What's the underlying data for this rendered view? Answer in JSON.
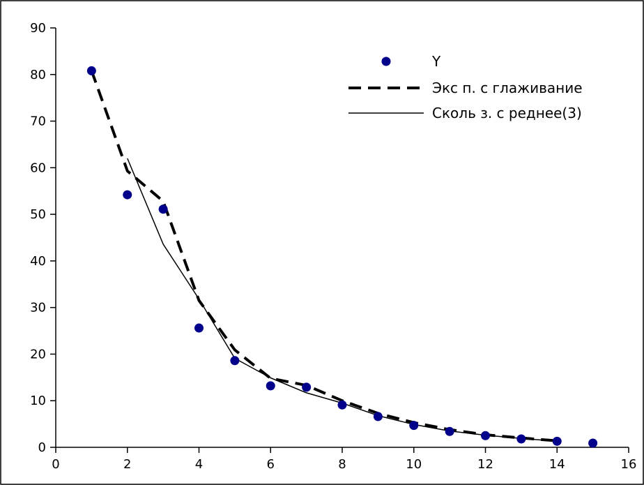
{
  "chart_data": {
    "type": "scatter",
    "title": "",
    "xlabel": "",
    "ylabel": "",
    "xlim": [
      0,
      16
    ],
    "ylim": [
      0,
      90
    ],
    "xticks": [
      0,
      2,
      4,
      6,
      8,
      10,
      12,
      14,
      16
    ],
    "yticks": [
      0,
      10,
      20,
      30,
      40,
      50,
      60,
      70,
      80,
      90
    ],
    "grid": false,
    "legend_position": "top-right",
    "series": [
      {
        "name": "Y",
        "kind": "scatter",
        "color": "#00008b",
        "x": [
          1,
          2,
          3,
          4,
          5,
          6,
          7,
          8,
          9,
          10,
          11,
          12,
          13,
          14,
          15
        ],
        "y": [
          80.8,
          54.2,
          51.1,
          25.6,
          18.6,
          13.2,
          12.9,
          9.1,
          6.6,
          4.7,
          3.4,
          2.5,
          1.8,
          1.3,
          0.9
        ]
      },
      {
        "name": "Экс п.  с глаживание",
        "kind": "line",
        "style": "dashed",
        "color": "#000000",
        "x": [
          1,
          2,
          3,
          4,
          5,
          6,
          7,
          8,
          9,
          10,
          11,
          12,
          13,
          14
        ],
        "y": [
          80.8,
          59.3,
          52.8,
          31.5,
          20.9,
          14.8,
          13.3,
          10.0,
          7.3,
          5.3,
          3.8,
          2.7,
          2.0,
          1.4
        ]
      },
      {
        "name": "Сколь з.  с реднее(3)",
        "kind": "line",
        "style": "solid",
        "color": "#000000",
        "x": [
          2,
          3,
          4,
          5,
          6,
          7,
          8,
          9,
          10,
          11,
          12,
          13,
          14
        ],
        "y": [
          62.0,
          43.6,
          31.8,
          19.1,
          14.9,
          11.7,
          9.5,
          6.8,
          4.9,
          3.5,
          2.6,
          1.9,
          1.3
        ]
      }
    ]
  }
}
